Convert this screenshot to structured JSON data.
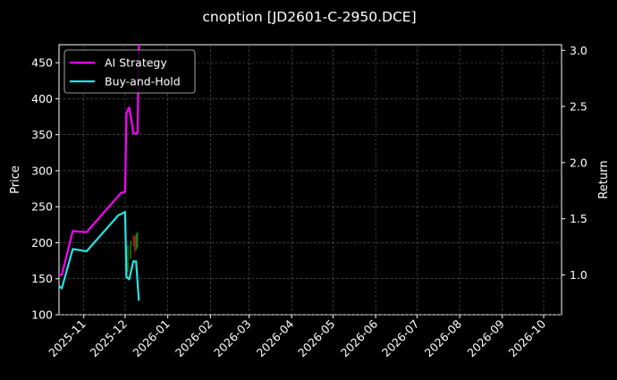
{
  "chart_data": {
    "type": "line",
    "title": "cnoption [JD2601-C-2950.DCE]",
    "xlabel": "",
    "ylabel": "Price",
    "y2label": "Return",
    "grid": true,
    "legend_position": "top-left",
    "background": "#000000",
    "x_ticks": [
      "2025-11",
      "2025-12",
      "2026-01",
      "2026-02",
      "2026-03",
      "2026-04",
      "2026-05",
      "2026-06",
      "2026-07",
      "2026-08",
      "2026-09",
      "2026-10"
    ],
    "xlim": [
      "2025-10-14",
      "2026-10-14"
    ],
    "ylim": [
      100,
      475
    ],
    "y_ticks": [
      100,
      150,
      200,
      250,
      300,
      350,
      400,
      450
    ],
    "y2lim": [
      0.645,
      3.05
    ],
    "y2_ticks": [
      "1.0",
      "1.5",
      "2.0",
      "2.5",
      "3.0"
    ],
    "series": [
      {
        "name": "AI Strategy",
        "color": "#ff00ff",
        "axis": "right",
        "points": [
          [
            "2025-10-14",
            1.0
          ],
          [
            "2025-10-16",
            1.0
          ],
          [
            "2025-10-24",
            1.39
          ],
          [
            "2025-11-03",
            1.38
          ],
          [
            "2025-11-28",
            1.73
          ],
          [
            "2025-12-01",
            1.74
          ],
          [
            "2025-12-02",
            2.44
          ],
          [
            "2025-12-03",
            2.47
          ],
          [
            "2025-12-04",
            2.49
          ],
          [
            "2025-12-06",
            2.35
          ],
          [
            "2025-12-07",
            2.26
          ],
          [
            "2025-12-10",
            2.26
          ],
          [
            "2025-12-11",
            3.06
          ]
        ]
      },
      {
        "name": "Buy-and-Hold",
        "color": "#22e5e5",
        "axis": "right",
        "points": [
          [
            "2025-10-14",
            0.9
          ],
          [
            "2025-10-16",
            0.88
          ],
          [
            "2025-10-24",
            1.23
          ],
          [
            "2025-11-03",
            1.21
          ],
          [
            "2025-11-26",
            1.53
          ],
          [
            "2025-12-01",
            1.56
          ],
          [
            "2025-12-02",
            0.98
          ],
          [
            "2025-12-04",
            0.96
          ],
          [
            "2025-12-07",
            1.12
          ],
          [
            "2025-12-09",
            1.12
          ],
          [
            "2025-12-11",
            0.77
          ]
        ]
      }
    ],
    "candles": [
      {
        "date": "2025-12-03",
        "low": 160,
        "high": 197,
        "color": "#1f9a1f"
      },
      {
        "date": "2025-12-05",
        "low": 178,
        "high": 203,
        "color": "#1f9a1f"
      },
      {
        "date": "2025-12-07",
        "low": 195,
        "high": 211,
        "color": "#c02020"
      },
      {
        "date": "2025-12-08",
        "low": 186,
        "high": 209,
        "color": "#c02020"
      },
      {
        "date": "2025-12-09",
        "low": 190,
        "high": 213,
        "color": "#1f9a1f"
      },
      {
        "date": "2025-12-10",
        "low": 193,
        "high": 215,
        "color": "#1f9a1f"
      }
    ]
  }
}
